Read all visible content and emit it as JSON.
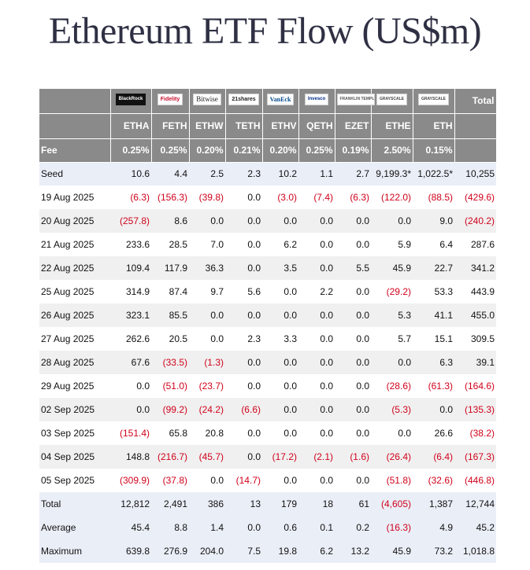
{
  "title": "Ethereum ETF Flow (US$m)",
  "chart_data": {
    "type": "table",
    "title": "Ethereum ETF Flow (US$m)",
    "issuers": [
      "BlackRock",
      "Fidelity",
      "Bitwise",
      "21shares",
      "VanEck",
      "Invesco",
      "FRANKLIN TEMPLETON",
      "GRAYSCALE",
      "GRAYSCALE"
    ],
    "total_header": "Total",
    "tickers": [
      "ETHA",
      "FETH",
      "ETHW",
      "TETH",
      "ETHV",
      "QETH",
      "EZET",
      "ETHE",
      "ETH"
    ],
    "fee_label": "Fee",
    "fees": [
      "0.25%",
      "0.25%",
      "0.20%",
      "0.21%",
      "0.20%",
      "0.25%",
      "0.19%",
      "2.50%",
      "0.15%"
    ],
    "rows": [
      {
        "label": "Seed",
        "values": [
          "10.6",
          "4.4",
          "2.5",
          "2.3",
          "10.2",
          "1.1",
          "2.7",
          "9,199.3*",
          "1,022.5*",
          "10,255"
        ]
      },
      {
        "label": "19 Aug 2025",
        "values": [
          "(6.3)",
          "(156.3)",
          "(39.8)",
          "0.0",
          "(3.0)",
          "(7.4)",
          "(6.3)",
          "(122.0)",
          "(88.5)",
          "(429.6)"
        ]
      },
      {
        "label": "20 Aug 2025",
        "values": [
          "(257.8)",
          "8.6",
          "0.0",
          "0.0",
          "0.0",
          "0.0",
          "0.0",
          "0.0",
          "9.0",
          "(240.2)"
        ]
      },
      {
        "label": "21 Aug 2025",
        "values": [
          "233.6",
          "28.5",
          "7.0",
          "0.0",
          "6.2",
          "0.0",
          "0.0",
          "5.9",
          "6.4",
          "287.6"
        ]
      },
      {
        "label": "22 Aug 2025",
        "values": [
          "109.4",
          "117.9",
          "36.3",
          "0.0",
          "3.5",
          "0.0",
          "5.5",
          "45.9",
          "22.7",
          "341.2"
        ]
      },
      {
        "label": "25 Aug 2025",
        "values": [
          "314.9",
          "87.4",
          "9.7",
          "5.6",
          "0.0",
          "2.2",
          "0.0",
          "(29.2)",
          "53.3",
          "443.9"
        ]
      },
      {
        "label": "26 Aug 2025",
        "values": [
          "323.1",
          "85.5",
          "0.0",
          "0.0",
          "0.0",
          "0.0",
          "0.0",
          "5.3",
          "41.1",
          "455.0"
        ]
      },
      {
        "label": "27 Aug 2025",
        "values": [
          "262.6",
          "20.5",
          "0.0",
          "2.3",
          "3.3",
          "0.0",
          "0.0",
          "5.7",
          "15.1",
          "309.5"
        ]
      },
      {
        "label": "28 Aug 2025",
        "values": [
          "67.6",
          "(33.5)",
          "(1.3)",
          "0.0",
          "0.0",
          "0.0",
          "0.0",
          "0.0",
          "6.3",
          "39.1"
        ]
      },
      {
        "label": "29 Aug 2025",
        "values": [
          "0.0",
          "(51.0)",
          "(23.7)",
          "0.0",
          "0.0",
          "0.0",
          "0.0",
          "(28.6)",
          "(61.3)",
          "(164.6)"
        ]
      },
      {
        "label": "02 Sep 2025",
        "values": [
          "0.0",
          "(99.2)",
          "(24.2)",
          "(6.6)",
          "0.0",
          "0.0",
          "0.0",
          "(5.3)",
          "0.0",
          "(135.3)"
        ]
      },
      {
        "label": "03 Sep 2025",
        "values": [
          "(151.4)",
          "65.8",
          "20.8",
          "0.0",
          "0.0",
          "0.0",
          "0.0",
          "0.0",
          "26.6",
          "(38.2)"
        ]
      },
      {
        "label": "04 Sep 2025",
        "values": [
          "148.8",
          "(216.7)",
          "(45.7)",
          "0.0",
          "(17.2)",
          "(2.1)",
          "(1.6)",
          "(26.4)",
          "(6.4)",
          "(167.3)"
        ]
      },
      {
        "label": "05 Sep 2025",
        "values": [
          "(309.9)",
          "(37.8)",
          "0.0",
          "(14.7)",
          "0.0",
          "0.0",
          "0.0",
          "(51.8)",
          "(32.6)",
          "(446.8)"
        ]
      },
      {
        "label": "Total",
        "values": [
          "12,812",
          "2,491",
          "386",
          "13",
          "179",
          "18",
          "61",
          "(4,605)",
          "1,387",
          "12,744"
        ]
      },
      {
        "label": "Average",
        "values": [
          "45.4",
          "8.8",
          "1.4",
          "0.0",
          "0.6",
          "0.1",
          "0.2",
          "(16.3)",
          "4.9",
          "45.2"
        ]
      },
      {
        "label": "Maximum",
        "values": [
          "639.8",
          "276.9",
          "204.0",
          "7.5",
          "19.8",
          "6.2",
          "13.2",
          "45.9",
          "73.2",
          "1,018.8"
        ]
      }
    ]
  }
}
